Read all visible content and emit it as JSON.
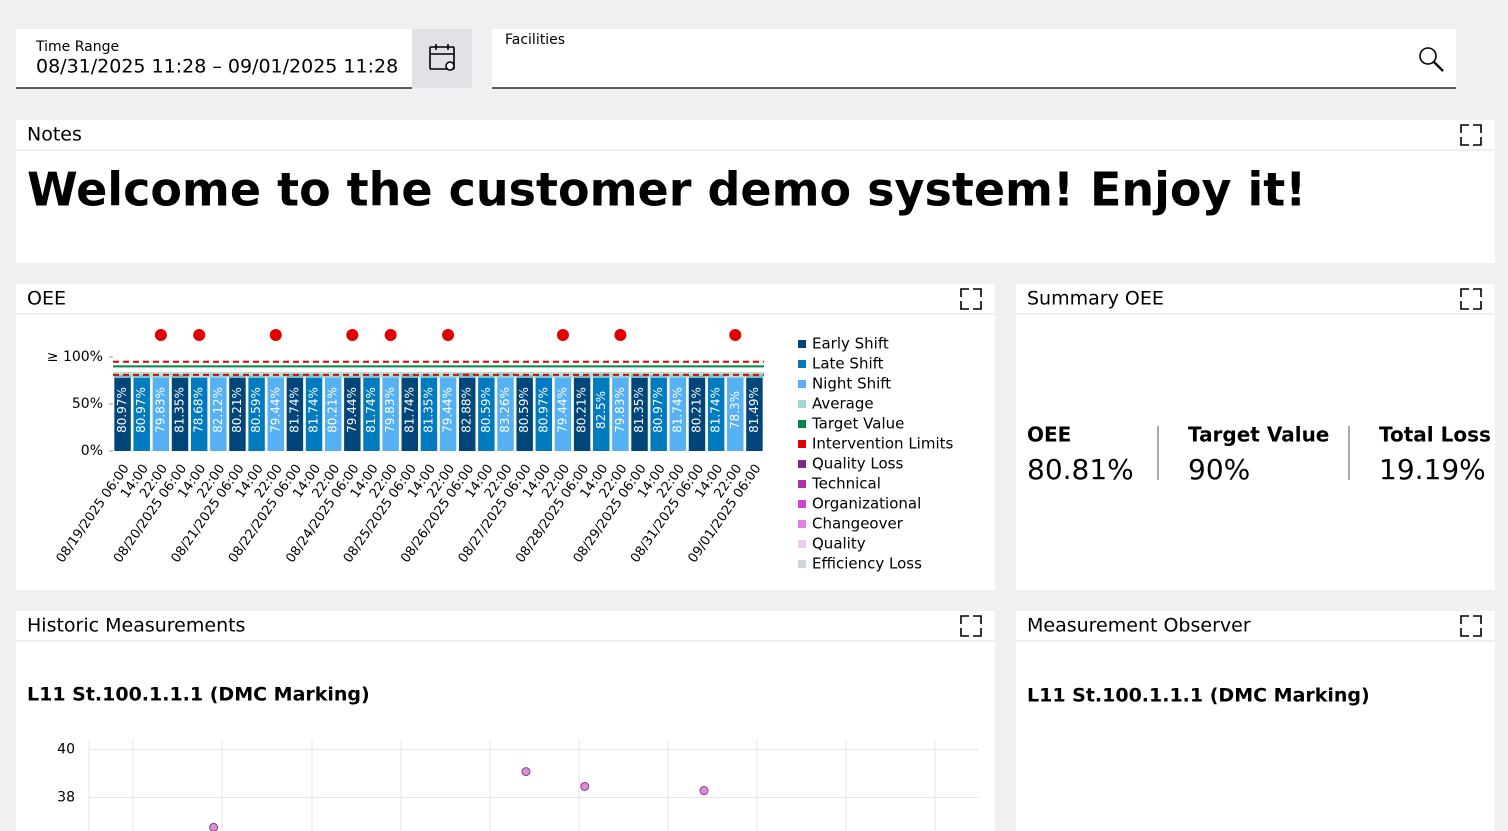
{
  "filters": {
    "time_range": {
      "label": "Time Range",
      "value": "08/31/2025 11:28 – 09/01/2025 11:28"
    },
    "facilities": {
      "label": "Facilities"
    }
  },
  "panels": {
    "notes": {
      "title": "Notes",
      "text": "Welcome to the customer demo system! Enjoy it!"
    },
    "oee": {
      "title": "OEE"
    },
    "summary": {
      "title": "Summary OEE",
      "items": [
        {
          "label": "OEE",
          "value": "80.81%"
        },
        {
          "label": "Target Value",
          "value": "90%"
        },
        {
          "label": "Total Loss",
          "value": "19.19%"
        }
      ]
    },
    "historic": {
      "title": "Historic Measurements"
    },
    "observer": {
      "title": "Measurement Observer",
      "subtitle": "L11 St.100.1.1.1 (DMC Marking)"
    }
  },
  "chart_data": [
    {
      "type": "bar",
      "categories": [
        "08/19/2025 06:00",
        "14:00",
        "22:00",
        "08/20/2025 06:00",
        "14:00",
        "22:00",
        "08/21/2025 06:00",
        "14:00",
        "22:00",
        "08/22/2025 06:00",
        "14:00",
        "22:00",
        "08/24/2025 06:00",
        "14:00",
        "22:00",
        "08/25/2025 06:00",
        "14:00",
        "22:00",
        "08/26/2025 06:00",
        "14:00",
        "22:00",
        "08/27/2025 06:00",
        "14:00",
        "22:00",
        "08/28/2025 06:00",
        "14:00",
        "22:00",
        "08/29/2025 06:00",
        "14:00",
        "22:00",
        "08/31/2025 06:00",
        "14:00",
        "22:00",
        "09/01/2025 06:00"
      ],
      "series": [
        {
          "name": "Early Shift",
          "color": "#00467a",
          "values": [
            80.97,
            null,
            null,
            81.35,
            null,
            null,
            80.21,
            null,
            null,
            81.74,
            null,
            null,
            79.44,
            null,
            null,
            81.74,
            null,
            null,
            82.88,
            null,
            null,
            80.59,
            null,
            null,
            80.21,
            null,
            null,
            81.35,
            null,
            null,
            80.21,
            null,
            null,
            81.49
          ],
          "value_labels": [
            "80.97%",
            null,
            null,
            "81.35%",
            null,
            null,
            "80.21%",
            null,
            null,
            "81.74%",
            null,
            null,
            "79.44%",
            null,
            null,
            "81.74%",
            null,
            null,
            "82.88%",
            null,
            null,
            "80.59%",
            null,
            null,
            "80.21%",
            null,
            null,
            "81.35%",
            null,
            null,
            "80.21%",
            null,
            null,
            "81.49%"
          ]
        },
        {
          "name": "Late Shift",
          "color": "#007bc0",
          "values": [
            null,
            80.97,
            null,
            null,
            78.68,
            null,
            null,
            80.59,
            null,
            null,
            81.74,
            null,
            null,
            81.74,
            null,
            null,
            81.35,
            null,
            null,
            80.59,
            null,
            null,
            80.97,
            null,
            null,
            82.5,
            null,
            null,
            80.97,
            null,
            null,
            81.74,
            null,
            null
          ],
          "value_labels": [
            null,
            "80.97%",
            null,
            null,
            "78.68%",
            null,
            null,
            "80.59%",
            null,
            null,
            "81.74%",
            null,
            null,
            "81.74%",
            null,
            null,
            "81.35%",
            null,
            null,
            "80.59%",
            null,
            null,
            "80.97%",
            null,
            null,
            "82.5%",
            null,
            null,
            "80.97%",
            null,
            null,
            "81.74%",
            null,
            null
          ]
        },
        {
          "name": "Night Shift",
          "color": "#56b0f4",
          "values": [
            null,
            null,
            79.83,
            null,
            null,
            82.12,
            null,
            null,
            79.44,
            null,
            null,
            80.21,
            null,
            null,
            79.83,
            null,
            null,
            79.44,
            null,
            null,
            83.26,
            null,
            null,
            79.44,
            null,
            null,
            79.83,
            null,
            null,
            81.74,
            null,
            null,
            78.3,
            null
          ],
          "value_labels": [
            null,
            null,
            "79.83%",
            null,
            null,
            "82.12%",
            null,
            null,
            "79.44%",
            null,
            null,
            "80.21%",
            null,
            null,
            "79.83%",
            null,
            null,
            "79.44%",
            null,
            null,
            "83.26%",
            null,
            null,
            "79.44%",
            null,
            null,
            "79.83%",
            null,
            null,
            "81.74%",
            null,
            null,
            "78.3%",
            null
          ]
        }
      ],
      "reference_lines": [
        {
          "name": "Average",
          "color": "#9ed9d2",
          "values": [
            80.81
          ]
        },
        {
          "name": "Target Value",
          "color": "#00884a",
          "values": [
            90
          ]
        },
        {
          "name": "Intervention Limits",
          "color": "#e00000",
          "values": [
            81,
            95
          ]
        }
      ],
      "loss_categories": [
        {
          "name": "Quality Loss",
          "color": "#7d2a8a"
        },
        {
          "name": "Technical",
          "color": "#b12ea9"
        },
        {
          "name": "Organizational",
          "color": "#d43fd0"
        },
        {
          "name": "Changeover",
          "color": "#e57ee0"
        },
        {
          "name": "Quality",
          "color": "#f1cbee"
        },
        {
          "name": "Efficiency Loss",
          "color": "#cfd4d9"
        }
      ],
      "event_markers": [
        2,
        4,
        8,
        12,
        14,
        17,
        23,
        26,
        32
      ],
      "event_color": "#e00000",
      "ylim": [
        0,
        100
      ],
      "yticks": [
        {
          "value": 0,
          "label": "0%"
        },
        {
          "value": 50,
          "label": "50%"
        },
        {
          "value": 100,
          "label": "≥ 100%"
        }
      ]
    },
    {
      "type": "scatter",
      "title": "L11 St.100.1.1.1 (DMC Marking)",
      "x": [
        1.4,
        4.91,
        5.57,
        6.91
      ],
      "values": [
        36.75,
        39.08,
        38.46,
        38.29
      ],
      "color": "#d98fd8",
      "xlim": [
        0,
        10
      ],
      "ylim": [
        36.6,
        40.4
      ],
      "yticks": [
        40,
        38
      ],
      "grid": true
    }
  ]
}
